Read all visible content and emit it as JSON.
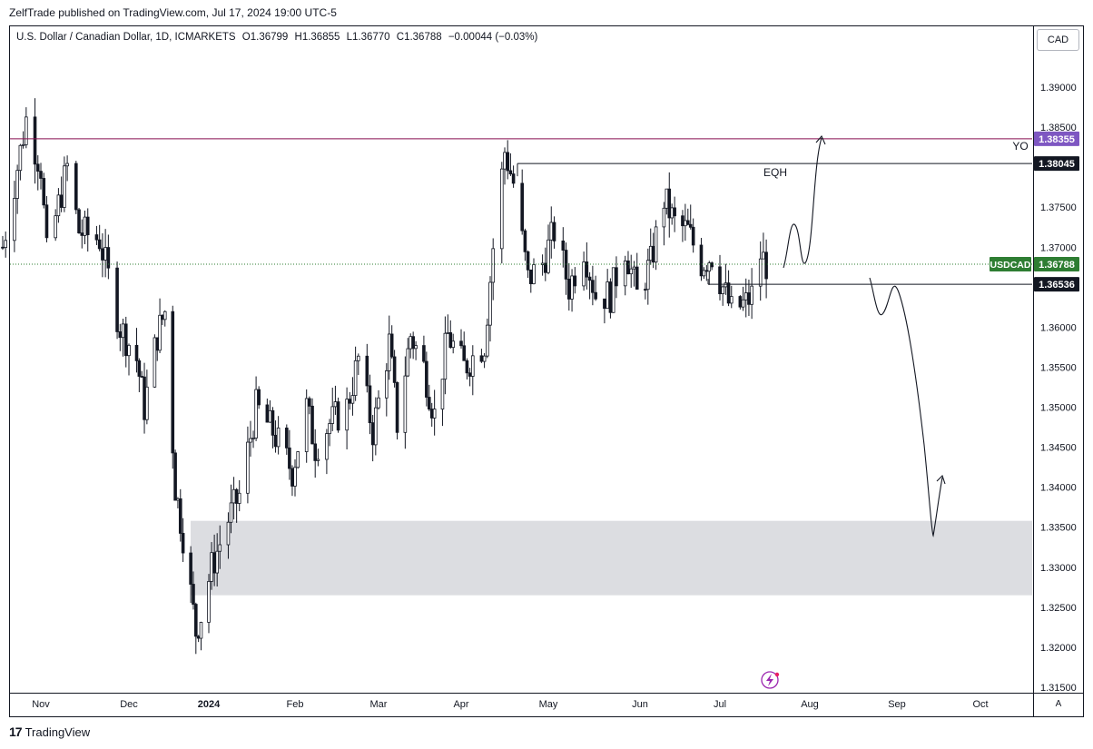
{
  "publisher_line": "ZelfTrade published on TradingView.com, Jul 17, 2024 19:00 UTC-5",
  "footer_brand": "TradingView",
  "currency_button": "CAD",
  "auto_scale_button": "A",
  "symbol_info": {
    "name": "U.S. Dollar / Canadian Dollar, 1D, ICMARKETS",
    "open": "O1.36799",
    "high": "H1.36855",
    "low": "L1.36770",
    "close": "C1.36788",
    "change": "−0.00044 (−0.03%)"
  },
  "chart_data": {
    "type": "candlestick",
    "symbol": "USDCAD",
    "timeframe": "1D",
    "x_tick_labels": [
      "Nov",
      "Dec",
      "2024",
      "Feb",
      "Mar",
      "Apr",
      "May",
      "Jun",
      "Jul",
      "Aug",
      "Sep",
      "Oct"
    ],
    "y_tick_labels": [
      "1.39000",
      "1.38500",
      "1.37500",
      "1.37000",
      "1.36000",
      "1.35500",
      "1.35000",
      "1.34500",
      "1.34000",
      "1.33500",
      "1.33000",
      "1.32500",
      "1.32000",
      "1.31500"
    ],
    "ylim": [
      1.3125,
      1.3935
    ],
    "price_series": {
      "start_date": "2023-10-19",
      "end_date": "2024-07-17",
      "range_low": 1.3177,
      "range_high": 1.3899,
      "last_close": 1.36788
    },
    "levels": [
      {
        "name": "YO",
        "value": 1.38355,
        "label": "1.38355",
        "color": "#7e57c2",
        "line_color": "#880e4f"
      },
      {
        "name": "EQH",
        "value": 1.38045,
        "label": "1.38045",
        "color": "#131722"
      },
      {
        "name": "USDCAD",
        "value": 1.36788,
        "label": "1.36788",
        "color": "#2e7d32"
      },
      {
        "name": "",
        "value": 1.36536,
        "label": "1.36536",
        "color": "#131722"
      }
    ],
    "zone": {
      "from": 1.3265,
      "to": 1.3358,
      "color": "#dcdde1"
    },
    "annotations": [
      {
        "text": "YO"
      },
      {
        "text": "EQH"
      }
    ],
    "projection_paths": [
      "bullish path toward 1.385",
      "bearish path toward 1.334"
    ]
  },
  "colors": {
    "candle": "#131722",
    "background": "#ffffff",
    "zone": "#dcdde1",
    "yo_line": "#880e4f",
    "yo_label": "#7e57c2",
    "usdcad_label": "#2e7d32"
  }
}
